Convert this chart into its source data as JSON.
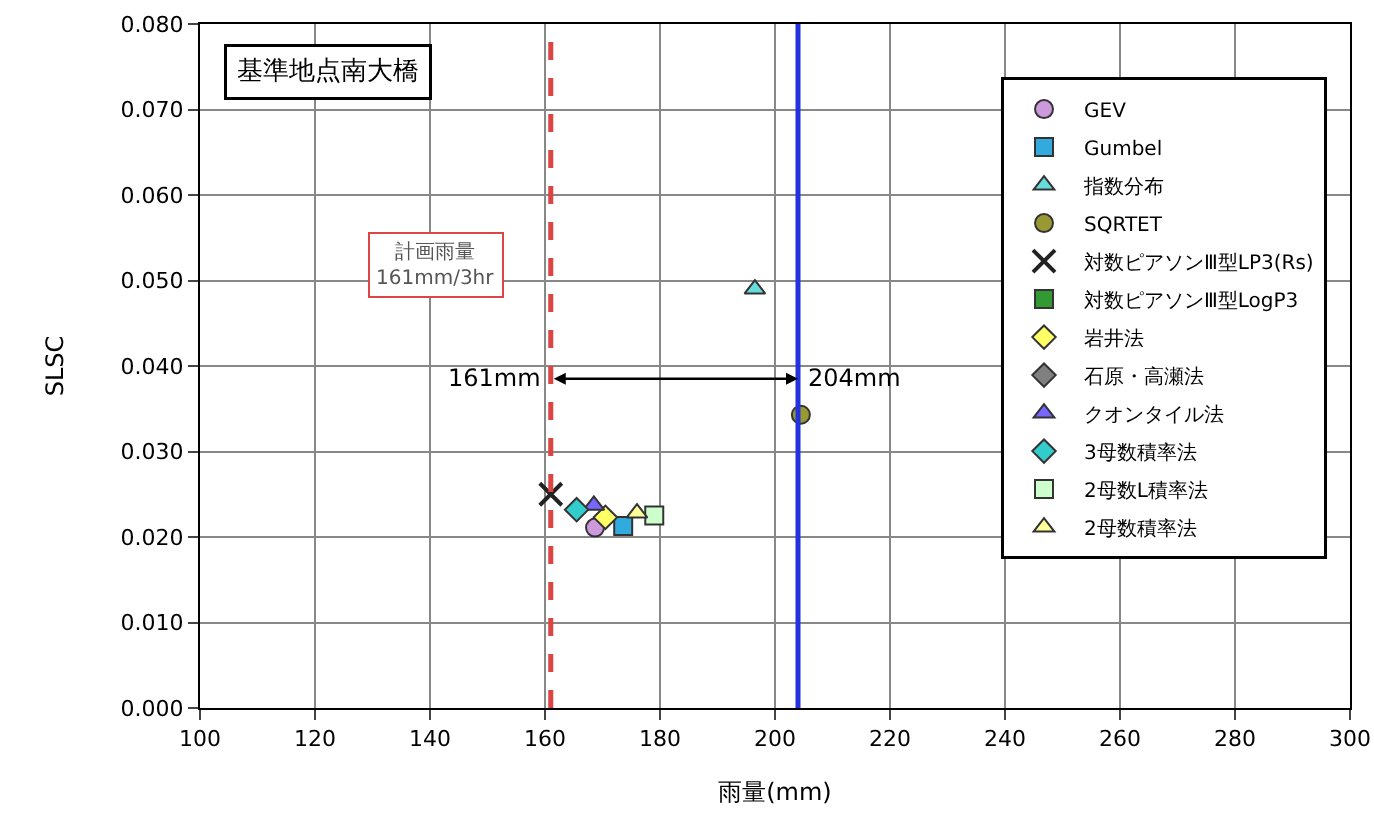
{
  "chart_data": {
    "type": "scatter",
    "title": "基準地点南大橋",
    "xlabel": "雨量(mm)",
    "ylabel": "SLSC",
    "xlim": [
      100,
      300
    ],
    "xticks": [
      100,
      120,
      140,
      160,
      180,
      200,
      220,
      240,
      260,
      280,
      300
    ],
    "ylim": [
      0,
      0.08
    ],
    "yticks": [
      {
        "value": 0,
        "label": "0.000"
      },
      {
        "value": 0.01,
        "label": "0.010"
      },
      {
        "value": 0.02,
        "label": "0.020"
      },
      {
        "value": 0.03,
        "label": "0.030"
      },
      {
        "value": 0.04,
        "label": "0.040"
      },
      {
        "value": 0.05,
        "label": "0.050"
      },
      {
        "value": 0.06,
        "label": "0.060"
      },
      {
        "value": 0.07,
        "label": "0.070"
      },
      {
        "value": 0.08,
        "label": "0.080"
      }
    ],
    "grid": true,
    "legend": "right",
    "series": [
      {
        "name": "GEV",
        "color": "#cc99dd",
        "marker": "circle",
        "x": [
          168.7
        ],
        "values": [
          0.0211
        ]
      },
      {
        "name": "Gumbel",
        "color": "#33aadd",
        "marker": "square",
        "x": [
          173.6
        ],
        "values": [
          0.0213
        ]
      },
      {
        "name": "指数分布",
        "color": "#66dddd",
        "marker": "triangle",
        "x": [
          196.5
        ],
        "values": [
          0.049
        ]
      },
      {
        "name": "SQRTET",
        "color": "#999933",
        "marker": "circle",
        "x": [
          204.5
        ],
        "values": [
          0.0343
        ]
      },
      {
        "name": "対数ピアソンⅢ型LP3(Rs)",
        "color": "#222222",
        "marker": "cross",
        "x": [
          161
        ],
        "values": [
          0.025
        ]
      },
      {
        "name": "対数ピアソンⅢ型LogP3",
        "color": "#339933",
        "marker": "square",
        "x": [
          null
        ],
        "values": [
          null
        ]
      },
      {
        "name": "岩井法",
        "color": "#ffff66",
        "marker": "diamond",
        "x": [
          170.5
        ],
        "values": [
          0.0223
        ]
      },
      {
        "name": "石原・高瀬法",
        "color": "#808080",
        "marker": "diamond",
        "x": [
          null
        ],
        "values": [
          null
        ]
      },
      {
        "name": "クオンタイル法",
        "color": "#7766ff",
        "marker": "triangle",
        "x": [
          168.5
        ],
        "values": [
          0.0237
        ]
      },
      {
        "name": "3母数積率法",
        "color": "#33cccc",
        "marker": "diamond",
        "x": [
          165.5
        ],
        "values": [
          0.0232
        ]
      },
      {
        "name": "2母数L積率法",
        "color": "#ccffcc",
        "marker": "square",
        "x": [
          179
        ],
        "values": [
          0.0225
        ]
      },
      {
        "name": "2母数積率法",
        "color": "#ffff99",
        "marker": "triangle",
        "x": [
          176
        ],
        "values": [
          0.0228
        ]
      }
    ],
    "ref_lines": [
      {
        "axis": "x",
        "value": 161,
        "color": "#dd4444",
        "line_style": "dashed"
      },
      {
        "axis": "x",
        "value": 204,
        "color": "#2233dd",
        "line_style": "solid"
      }
    ],
    "annotations": [
      {
        "text": "161mm",
        "x": 161,
        "y": 0.0385
      },
      {
        "text": "204mm",
        "x": 204,
        "y": 0.0385
      },
      "計画雨量\n161mm/3hr"
    ]
  }
}
